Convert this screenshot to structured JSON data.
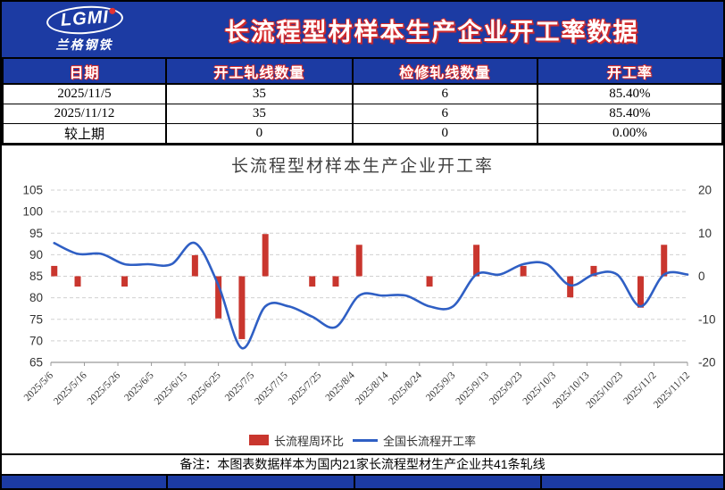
{
  "header": {
    "logo": {
      "text": "LGMI",
      "subtext": "兰格钢铁"
    },
    "title": "长流程型材样本生产企业开工率数据"
  },
  "table": {
    "columns": [
      "日期",
      "开工轧线数量",
      "检修轧线数量",
      "开工率"
    ],
    "rows": [
      [
        "2025/11/5",
        "35",
        "6",
        "85.40%"
      ],
      [
        "2025/11/12",
        "35",
        "6",
        "85.40%"
      ],
      [
        "较上期",
        "0",
        "0",
        "0.00%"
      ]
    ]
  },
  "chart_data": {
    "type": "bar+line combo",
    "title": "长流程型材样本生产企业开工率",
    "x_axis_span_days": 190,
    "x_tick_labels": [
      "2025/5/6",
      "2025/5/16",
      "2025/5/26",
      "2025/6/5",
      "2025/6/15",
      "2025/6/25",
      "2025/7/5",
      "2025/7/15",
      "2025/7/25",
      "2025/8/4",
      "2025/8/14",
      "2025/8/24",
      "2025/9/3",
      "2025/9/13",
      "2025/9/23",
      "2025/10/3",
      "2025/10/13",
      "2025/10/23",
      "2025/11/2",
      "2025/11/12"
    ],
    "x_day_offsets": [
      1,
      8,
      15,
      22,
      29,
      36,
      43,
      50,
      57,
      64,
      71,
      78,
      85,
      92,
      99,
      106,
      113,
      120,
      127,
      134,
      141,
      148,
      155,
      162,
      169,
      176,
      183,
      190
    ],
    "series": [
      {
        "name": "长流程周环比",
        "type": "bar",
        "axis": "right",
        "color": "#c9362e",
        "values": [
          2.4,
          -2.4,
          0,
          -2.4,
          0,
          0,
          4.9,
          -9.8,
          -14.6,
          9.8,
          0,
          -2.4,
          -2.4,
          7.3,
          0,
          0,
          -2.4,
          0,
          7.3,
          0,
          2.4,
          0,
          -4.9,
          2.4,
          0,
          -7.3,
          7.3,
          0
        ]
      },
      {
        "name": "全国长流程开工率",
        "type": "line",
        "axis": "left",
        "color": "#2f5fc4",
        "values": [
          92.7,
          90.2,
          90.2,
          87.8,
          87.8,
          87.8,
          92.7,
          82.9,
          68.3,
          78.0,
          78.0,
          75.6,
          73.2,
          80.5,
          80.5,
          80.5,
          78.0,
          78.0,
          85.4,
          85.4,
          87.8,
          87.8,
          82.9,
          85.4,
          85.4,
          78.0,
          85.4,
          85.4
        ]
      }
    ],
    "left_axis": {
      "min": 65,
      "max": 105,
      "step": 5,
      "ticks": [
        105,
        100,
        95,
        90,
        85,
        80,
        75,
        70,
        65
      ]
    },
    "right_axis": {
      "min": -20,
      "max": 20,
      "step": 10,
      "ticks": [
        20,
        10,
        0,
        -10,
        -20
      ],
      "zero_maps_to_left": 85
    },
    "grid": "dashed horizontal",
    "legend_position": "bottom-center"
  },
  "footer": {
    "note": "备注：本图表数据样本为国内21家长流程型材生产企业共41条轧线"
  },
  "colors": {
    "header_bg": "#1c3ba3",
    "accent_red": "#c9362e",
    "line_blue": "#2f5fc4",
    "grid": "#d0d0d0"
  }
}
